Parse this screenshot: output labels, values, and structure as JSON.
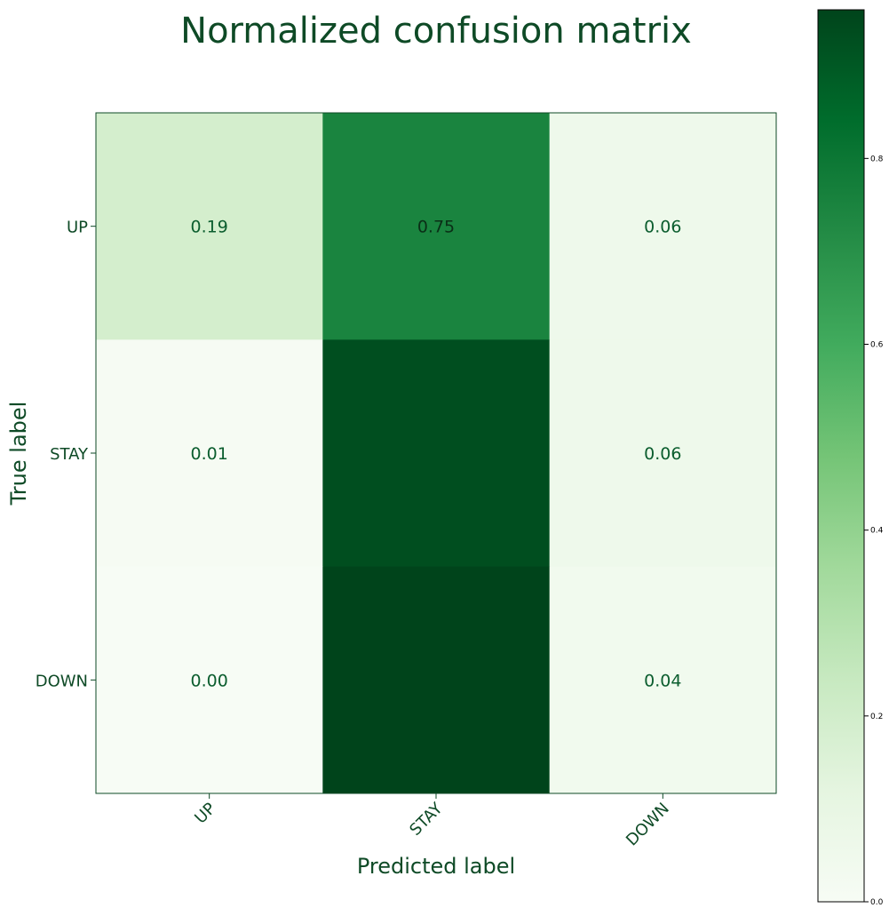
{
  "chart_data": {
    "type": "heatmap",
    "title": "Normalized confusion matrix",
    "xlabel": "Predicted label",
    "ylabel": "True label",
    "x_categories": [
      "UP",
      "STAY",
      "DOWN"
    ],
    "y_categories": [
      "UP",
      "STAY",
      "DOWN"
    ],
    "values": [
      [
        0.19,
        0.75,
        0.06
      ],
      [
        0.01,
        0.93,
        0.06
      ],
      [
        0.0,
        0.96,
        0.04
      ]
    ],
    "cell_labels": [
      [
        "0.19",
        "0.75",
        "0.06"
      ],
      [
        "0.01",
        "",
        "0.06"
      ],
      [
        "0.00",
        "",
        "0.04"
      ]
    ],
    "colormap": "Greens",
    "colorbar": {
      "range": [
        0.0,
        0.96
      ],
      "ticks": [
        0.0,
        0.2,
        0.4,
        0.6,
        0.8
      ],
      "tick_labels": [
        "0.0",
        "0.2",
        "0.4",
        "0.6",
        "0.8"
      ]
    },
    "colors": {
      "low": "#f7fcf5",
      "high": "#00441b",
      "text": "#0e4a26"
    }
  }
}
